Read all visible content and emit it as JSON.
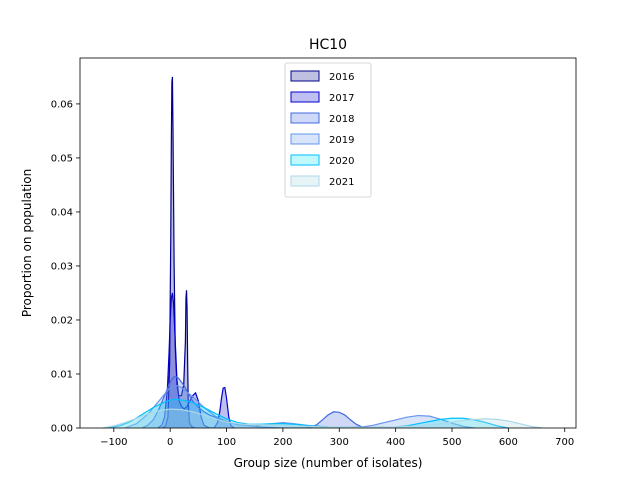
{
  "chart_data": {
    "type": "area",
    "title": "HC10",
    "xlabel": "Group size (number of isolates)",
    "ylabel": "Proportion on population",
    "xlim": [
      -160,
      720
    ],
    "ylim": [
      0,
      0.0685
    ],
    "xticks": [
      -100,
      0,
      100,
      200,
      300,
      400,
      500,
      600,
      700
    ],
    "xtick_labels": [
      "−100",
      "0",
      "100",
      "200",
      "300",
      "400",
      "500",
      "600",
      "700"
    ],
    "yticks": [
      0.0,
      0.01,
      0.02,
      0.03,
      0.04,
      0.05,
      0.06
    ],
    "ytick_labels": [
      "0.00",
      "0.01",
      "0.02",
      "0.03",
      "0.04",
      "0.05",
      "0.06"
    ],
    "grid": false,
    "legend_position": "top-center",
    "series": [
      {
        "name": "2016",
        "line_color": "#00008b",
        "fill_color": "#00008b",
        "fill_opacity": 0.25,
        "x": [
          -14,
          -8,
          -4,
          -1,
          1,
          2,
          3,
          4,
          5,
          7,
          9,
          12,
          15,
          20,
          24,
          27,
          28,
          29,
          30,
          31,
          32,
          34,
          38,
          44
        ],
        "y": [
          0,
          0.0004,
          0.002,
          0.012,
          0.035,
          0.052,
          0.064,
          0.065,
          0.055,
          0.03,
          0.015,
          0.008,
          0.006,
          0.006,
          0.008,
          0.016,
          0.024,
          0.0255,
          0.022,
          0.012,
          0.005,
          0.001,
          0.0003,
          0
        ]
      },
      {
        "name": "2017",
        "line_color": "#0000cd",
        "fill_color": "#0000cd",
        "fill_opacity": 0.25,
        "x": [
          -22,
          -15,
          -10,
          -5,
          -2,
          0,
          2,
          4,
          6,
          9,
          12,
          16,
          20,
          25,
          30,
          35,
          40,
          45,
          50,
          55,
          60,
          70,
          78,
          84,
          88,
          91,
          94,
          97,
          100,
          104,
          108,
          114
        ],
        "y": [
          0,
          0.0005,
          0.002,
          0.007,
          0.014,
          0.02,
          0.024,
          0.025,
          0.023,
          0.016,
          0.009,
          0.005,
          0.004,
          0.0035,
          0.004,
          0.005,
          0.006,
          0.0065,
          0.005,
          0.002,
          0.0005,
          0,
          0,
          0.001,
          0.003,
          0.0055,
          0.0074,
          0.0075,
          0.0055,
          0.002,
          0.0004,
          0
        ]
      },
      {
        "name": "2018",
        "line_color": "#4169e1",
        "fill_color": "#4169e1",
        "fill_opacity": 0.25,
        "x": [
          -50,
          -40,
          -30,
          -20,
          -10,
          0,
          5,
          10,
          15,
          20,
          25,
          30,
          40,
          50,
          60,
          70,
          80,
          90,
          100,
          110,
          120,
          140,
          160,
          180,
          200,
          220,
          240,
          250,
          260,
          270,
          280,
          290,
          300,
          310,
          320,
          330,
          340,
          360
        ],
        "y": [
          0,
          0.0005,
          0.0015,
          0.0035,
          0.006,
          0.0085,
          0.0094,
          0.0095,
          0.0092,
          0.0085,
          0.0078,
          0.0068,
          0.005,
          0.0038,
          0.003,
          0.0024,
          0.002,
          0.0015,
          0.0012,
          0.0009,
          0.0007,
          0.0004,
          0.0002,
          0.0001,
          0,
          0,
          0,
          0.0002,
          0.0006,
          0.0015,
          0.0024,
          0.003,
          0.0029,
          0.0024,
          0.0015,
          0.0007,
          0.0002,
          0
        ]
      },
      {
        "name": "2019",
        "line_color": "#6495ed",
        "fill_color": "#6495ed",
        "fill_opacity": 0.25,
        "x": [
          -80,
          -60,
          -40,
          -20,
          0,
          10,
          20,
          40,
          60,
          80,
          100,
          120,
          150,
          180,
          200,
          220,
          250,
          280,
          300,
          320,
          340,
          360,
          380,
          400,
          420,
          440,
          460,
          480,
          500,
          520,
          540
        ],
        "y": [
          0,
          0.0008,
          0.0025,
          0.005,
          0.0075,
          0.0079,
          0.0075,
          0.0058,
          0.0038,
          0.0022,
          0.0012,
          0.0006,
          0.0004,
          0.0008,
          0.001,
          0.0008,
          0.0004,
          0.0002,
          0.0001,
          0.0001,
          0.0002,
          0.0005,
          0.001,
          0.0015,
          0.002,
          0.0023,
          0.0022,
          0.0016,
          0.0009,
          0.0003,
          0
        ]
      },
      {
        "name": "2020",
        "line_color": "#00bfff",
        "fill_color": "#00e5ff",
        "fill_opacity": 0.25,
        "x": [
          -110,
          -90,
          -70,
          -50,
          -30,
          -10,
          0,
          10,
          20,
          30,
          40,
          60,
          80,
          100,
          120,
          140,
          160,
          180,
          200,
          220,
          240,
          280,
          320,
          360,
          400,
          420,
          440,
          460,
          480,
          500,
          520,
          540,
          560,
          580,
          600
        ],
        "y": [
          0,
          0.0004,
          0.0012,
          0.0025,
          0.0038,
          0.0048,
          0.0052,
          0.0053,
          0.0052,
          0.005,
          0.0047,
          0.0038,
          0.0027,
          0.0017,
          0.001,
          0.0007,
          0.0007,
          0.0008,
          0.0008,
          0.0007,
          0.0005,
          0.0002,
          0.0001,
          0.0001,
          0.0002,
          0.0004,
          0.0008,
          0.0012,
          0.0016,
          0.0018,
          0.0018,
          0.0015,
          0.001,
          0.0004,
          0
        ]
      },
      {
        "name": "2021",
        "line_color": "#add8e6",
        "fill_color": "#add8e6",
        "fill_opacity": 0.3,
        "x": [
          -120,
          -100,
          -80,
          -60,
          -40,
          -20,
          0,
          20,
          40,
          60,
          80,
          100,
          130,
          160,
          200,
          240,
          280,
          320,
          360,
          400,
          440,
          480,
          500,
          520,
          540,
          560,
          580,
          600,
          620,
          640,
          660
        ],
        "y": [
          0,
          0.0004,
          0.001,
          0.0018,
          0.0026,
          0.0032,
          0.0035,
          0.0034,
          0.003,
          0.0024,
          0.0017,
          0.0011,
          0.0007,
          0.0006,
          0.0005,
          0.0003,
          0.0002,
          0.0001,
          0.0001,
          0.0002,
          0.0004,
          0.0008,
          0.0011,
          0.0014,
          0.0016,
          0.0017,
          0.0016,
          0.0013,
          0.0008,
          0.0003,
          0
        ]
      }
    ]
  }
}
